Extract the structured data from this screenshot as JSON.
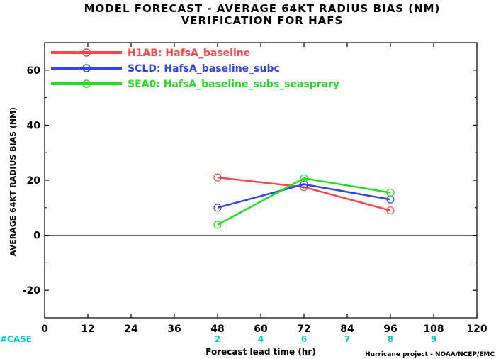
{
  "chart_data": {
    "type": "line",
    "title": "MODEL FORECAST - AVERAGE 64KT RADIUS BIAS (NM)",
    "subtitle": "VERIFICATION FOR HAFS",
    "xlabel": "Forecast lead time (hr)",
    "ylabel": "AVERAGE 64KT RADIUS BIAS (NM)",
    "xlim": [
      0,
      120
    ],
    "ylim": [
      -30,
      70
    ],
    "xticks": [
      0,
      12,
      24,
      36,
      48,
      60,
      72,
      84,
      96,
      108,
      120
    ],
    "yticks": [
      -20,
      0,
      20,
      40,
      60
    ],
    "zero_line": true,
    "legend_position": "top-left",
    "series": [
      {
        "name": "H1AB: HafsA_baseline",
        "color": "#ff4444",
        "x": [
          48,
          72,
          96
        ],
        "y": [
          21,
          17.5,
          9
        ]
      },
      {
        "name": "SCLD: HafsA_baseline_subc",
        "color": "#3344ee",
        "x": [
          48,
          72,
          96
        ],
        "y": [
          10,
          18.5,
          13
        ]
      },
      {
        "name": "SEA0: HafsA_baseline_subs_seasprary",
        "color": "#22dd22",
        "x": [
          48,
          72,
          96
        ],
        "y": [
          3.8,
          20.7,
          15.5
        ]
      }
    ],
    "case_counts": {
      "label": "#CASE",
      "color": "#00cccc",
      "x": [
        48,
        60,
        72,
        84,
        96,
        108
      ],
      "values": [
        "2",
        "4",
        "6",
        "7",
        "8",
        "9"
      ]
    },
    "credit": "Hurricane project - NOAA/NCEP/EMC"
  }
}
